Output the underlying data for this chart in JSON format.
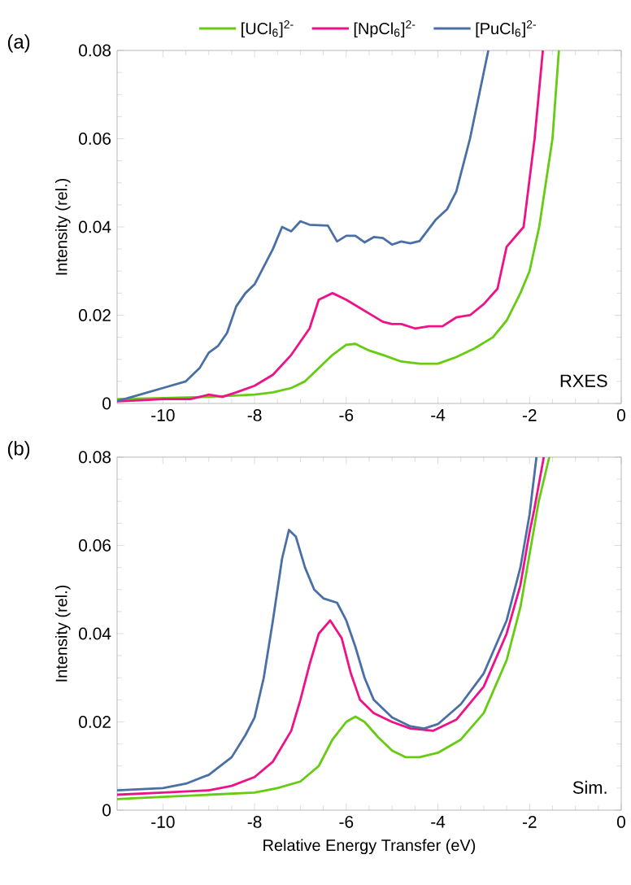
{
  "chart_data": [
    {
      "type": "line",
      "ylabel": "Intensity (rel.)",
      "xlim": [
        -11,
        0
      ],
      "ylim": [
        0,
        0.08
      ],
      "xticks": [
        -10,
        -8,
        -6,
        -4,
        -2,
        0
      ],
      "yticks": [
        0,
        0.02,
        0.04,
        0.06,
        0.08
      ],
      "legend": "top",
      "marker": "none",
      "line_style": "solid",
      "annotations": [
        "(a)",
        "RXES"
      ],
      "series": [
        {
          "name": "[UCl$_{6}$]$^{2-}$",
          "color": "#66cc11",
          "x": [
            -11,
            -10,
            -9,
            -8,
            -7.6,
            -7.2,
            -6.9,
            -6.6,
            -6.3,
            -6.0,
            -5.8,
            -5.5,
            -5.2,
            -4.8,
            -4.4,
            -4.0,
            -3.6,
            -3.2,
            -2.8,
            -2.5,
            -2.2,
            -2.0,
            -1.79,
            -1.5,
            -1.36
          ],
          "values": [
            0.001,
            0.0012,
            0.0015,
            0.002,
            0.0025,
            0.0035,
            0.005,
            0.008,
            0.011,
            0.0133,
            0.0135,
            0.012,
            0.011,
            0.0095,
            0.009,
            0.009,
            0.0105,
            0.0125,
            0.015,
            0.0188,
            0.025,
            0.03,
            0.04,
            0.06,
            0.08
          ]
        },
        {
          "name": "[NpCl$_{6}$]$^{2-}$",
          "color": "#ee1188",
          "x": [
            -11,
            -10.5,
            -10,
            -9.4,
            -9.0,
            -8.7,
            -8.4,
            -8.0,
            -7.6,
            -7.2,
            -6.8,
            -6.6,
            -6.3,
            -6.0,
            -5.6,
            -5.2,
            -5.0,
            -4.8,
            -4.5,
            -4.2,
            -3.9,
            -3.6,
            -3.3,
            -3.0,
            -2.7,
            -2.5,
            -2.13,
            -1.89,
            -1.71
          ],
          "values": [
            0.0005,
            0.0007,
            0.001,
            0.001,
            0.002,
            0.0015,
            0.0025,
            0.004,
            0.0065,
            0.011,
            0.017,
            0.0235,
            0.025,
            0.0235,
            0.021,
            0.0185,
            0.018,
            0.018,
            0.017,
            0.0175,
            0.0175,
            0.0195,
            0.02,
            0.0225,
            0.026,
            0.0355,
            0.04,
            0.06,
            0.08
          ]
        },
        {
          "name": "[PuCl$_{6}$]$^{2-}$",
          "color": "#4a6fa5",
          "x": [
            -11,
            -10.5,
            -10,
            -9.5,
            -9.2,
            -9,
            -8.8,
            -8.6,
            -8.4,
            -8.2,
            -8,
            -7.6,
            -7.4,
            -7.2,
            -7.0,
            -6.8,
            -6.4,
            -6.2,
            -6.0,
            -5.8,
            -5.6,
            -5.4,
            -5.2,
            -5.0,
            -4.8,
            -4.6,
            -4.4,
            -4.05,
            -3.8,
            -3.6,
            -3.3,
            -3.1,
            -2.9
          ],
          "values": [
            0.0005,
            0.002,
            0.0035,
            0.005,
            0.008,
            0.0115,
            0.013,
            0.016,
            0.022,
            0.025,
            0.027,
            0.035,
            0.04,
            0.039,
            0.0413,
            0.0405,
            0.0403,
            0.0367,
            0.038,
            0.038,
            0.0365,
            0.0377,
            0.0375,
            0.036,
            0.0367,
            0.0363,
            0.0368,
            0.0416,
            0.044,
            0.048,
            0.06,
            0.07,
            0.08
          ]
        }
      ]
    },
    {
      "type": "line",
      "xlabel": "Relative Energy Transfer (eV)",
      "ylabel": "Intensity (rel.)",
      "xlim": [
        -11,
        0
      ],
      "ylim": [
        0,
        0.08
      ],
      "xticks": [
        -10,
        -8,
        -6,
        -4,
        -2,
        0
      ],
      "yticks": [
        0,
        0.02,
        0.04,
        0.06,
        0.08
      ],
      "marker": "none",
      "line_style": "solid",
      "annotations": [
        "(b)",
        "Sim."
      ],
      "series": [
        {
          "color": "#66cc11",
          "x": [
            -11,
            -10,
            -9,
            -8,
            -7.5,
            -7,
            -6.6,
            -6.3,
            -6.0,
            -5.8,
            -5.6,
            -5.3,
            -5.0,
            -4.7,
            -4.4,
            -4.0,
            -3.5,
            -3.0,
            -2.5,
            -2.2,
            -2.0,
            -1.8,
            -1.57
          ],
          "values": [
            0.0025,
            0.003,
            0.0035,
            0.004,
            0.005,
            0.0065,
            0.01,
            0.016,
            0.02,
            0.0212,
            0.02,
            0.0165,
            0.0135,
            0.012,
            0.012,
            0.013,
            0.016,
            0.022,
            0.034,
            0.046,
            0.058,
            0.07,
            0.08
          ]
        },
        {
          "color": "#ee1188",
          "x": [
            -11,
            -10,
            -9,
            -8.5,
            -8,
            -7.6,
            -7.2,
            -7.0,
            -6.8,
            -6.6,
            -6.35,
            -6.1,
            -5.9,
            -5.7,
            -5.4,
            -5.0,
            -4.6,
            -4.1,
            -3.6,
            -3.0,
            -2.5,
            -2.2,
            -2.0,
            -1.9,
            -1.69
          ],
          "values": [
            0.0035,
            0.004,
            0.0045,
            0.0055,
            0.0075,
            0.011,
            0.018,
            0.025,
            0.033,
            0.04,
            0.043,
            0.039,
            0.031,
            0.025,
            0.022,
            0.02,
            0.0185,
            0.018,
            0.0205,
            0.028,
            0.04,
            0.051,
            0.063,
            0.068,
            0.08
          ]
        },
        {
          "color": "#4a6fa5",
          "x": [
            -11,
            -10,
            -9.5,
            -9,
            -8.5,
            -8.2,
            -8,
            -7.8,
            -7.6,
            -7.4,
            -7.25,
            -7.1,
            -6.9,
            -6.7,
            -6.5,
            -6.2,
            -6.0,
            -5.8,
            -5.6,
            -5.4,
            -5.0,
            -4.6,
            -4.3,
            -4.0,
            -3.5,
            -3.0,
            -2.5,
            -2.2,
            -2.0,
            -1.85
          ],
          "values": [
            0.0045,
            0.005,
            0.006,
            0.008,
            0.012,
            0.017,
            0.021,
            0.03,
            0.043,
            0.057,
            0.0635,
            0.062,
            0.055,
            0.05,
            0.048,
            0.047,
            0.043,
            0.037,
            0.03,
            0.025,
            0.021,
            0.019,
            0.0185,
            0.0195,
            0.024,
            0.031,
            0.043,
            0.055,
            0.067,
            0.08
          ]
        }
      ]
    }
  ]
}
